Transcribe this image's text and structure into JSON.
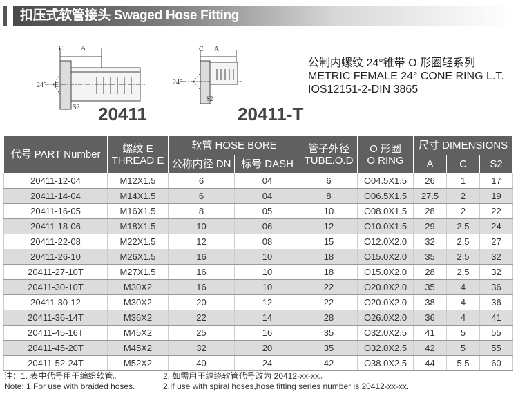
{
  "banner": {
    "title": "扣压式软管接头  Swaged Hose Fitting"
  },
  "drawings": {
    "labels": {
      "c": "C",
      "a": "A",
      "angle": "24°",
      "e": "E",
      "s2": "S2"
    },
    "models": [
      "20411",
      "20411-T"
    ]
  },
  "description": {
    "line1": "公制内螺纹 24°锥带 O 形圈轻系列",
    "line2": "METRIC FEMALE 24° CONE RING L.T.",
    "line3": "IOS12151-2-DIN 3865"
  },
  "table": {
    "headers": {
      "part_number": "代号 PART Number",
      "thread_cn": "螺纹 E",
      "thread_en": "THREAD E",
      "hose_bore": "软管 HOSE BORE",
      "dn": "公称内径 DN",
      "dash": "标号 DASH",
      "tube_cn": "管子外径",
      "tube_en": "TUBE.O.D",
      "oring_cn": "O 形圈",
      "oring_en": "O RING",
      "dimensions": "尺寸 DIMENSIONS",
      "a": "A",
      "c": "C",
      "s2": "S2"
    },
    "rows": [
      [
        "20411-12-04",
        "M12X1.5",
        "6",
        "04",
        "6",
        "O04.5X1.5",
        "26",
        "1",
        "17"
      ],
      [
        "20411-14-04",
        "M14X1.5",
        "6",
        "04",
        "8",
        "O06.5X1.5",
        "27.5",
        "2",
        "19"
      ],
      [
        "20411-16-05",
        "M16X1.5",
        "8",
        "05",
        "10",
        "O08.0X1.5",
        "28",
        "2",
        "22"
      ],
      [
        "20411-18-06",
        "M18X1.5",
        "10",
        "06",
        "12",
        "O10.0X1.5",
        "29",
        "2.5",
        "24"
      ],
      [
        "20411-22-08",
        "M22X1.5",
        "12",
        "08",
        "15",
        "O12.0X2.0",
        "32",
        "2.5",
        "27"
      ],
      [
        "20411-26-10",
        "M26X1.5",
        "16",
        "10",
        "18",
        "O15.0X2.0",
        "35",
        "2.5",
        "32"
      ],
      [
        "20411-27-10T",
        "M27X1.5",
        "16",
        "10",
        "18",
        "O15.0X2.0",
        "28",
        "2.5",
        "32"
      ],
      [
        "20411-30-10T",
        "M30X2",
        "16",
        "10",
        "22",
        "O20.0X2.0",
        "35",
        "4",
        "36"
      ],
      [
        "20411-30-12",
        "M30X2",
        "20",
        "12",
        "22",
        "O20.0X2.0",
        "38",
        "4",
        "36"
      ],
      [
        "20411-36-14T",
        "M36X2",
        "22",
        "14",
        "28",
        "O26.0X2.0",
        "36",
        "4",
        "41"
      ],
      [
        "20411-45-16T",
        "M45X2",
        "25",
        "16",
        "35",
        "O32.0X2.5",
        "41",
        "5",
        "55"
      ],
      [
        "20411-45-20T",
        "M45X2",
        "32",
        "20",
        "35",
        "O32.0X2.5",
        "42",
        "5",
        "55"
      ],
      [
        "20411-52-24T",
        "M52X2",
        "40",
        "24",
        "42",
        "O38.0X2.5",
        "44",
        "5.5",
        "60"
      ]
    ]
  },
  "notes": {
    "cn1": "注：1. 表中代号用于编织软管。",
    "cn2": "2. 如需用于缠绕软管代号改为 20412-xx-xx。",
    "en1": "Note: 1.For use with braided hoses.",
    "en2": "2.If use with spiral hoses,hose fitting series number is 20412-xx-xx."
  }
}
